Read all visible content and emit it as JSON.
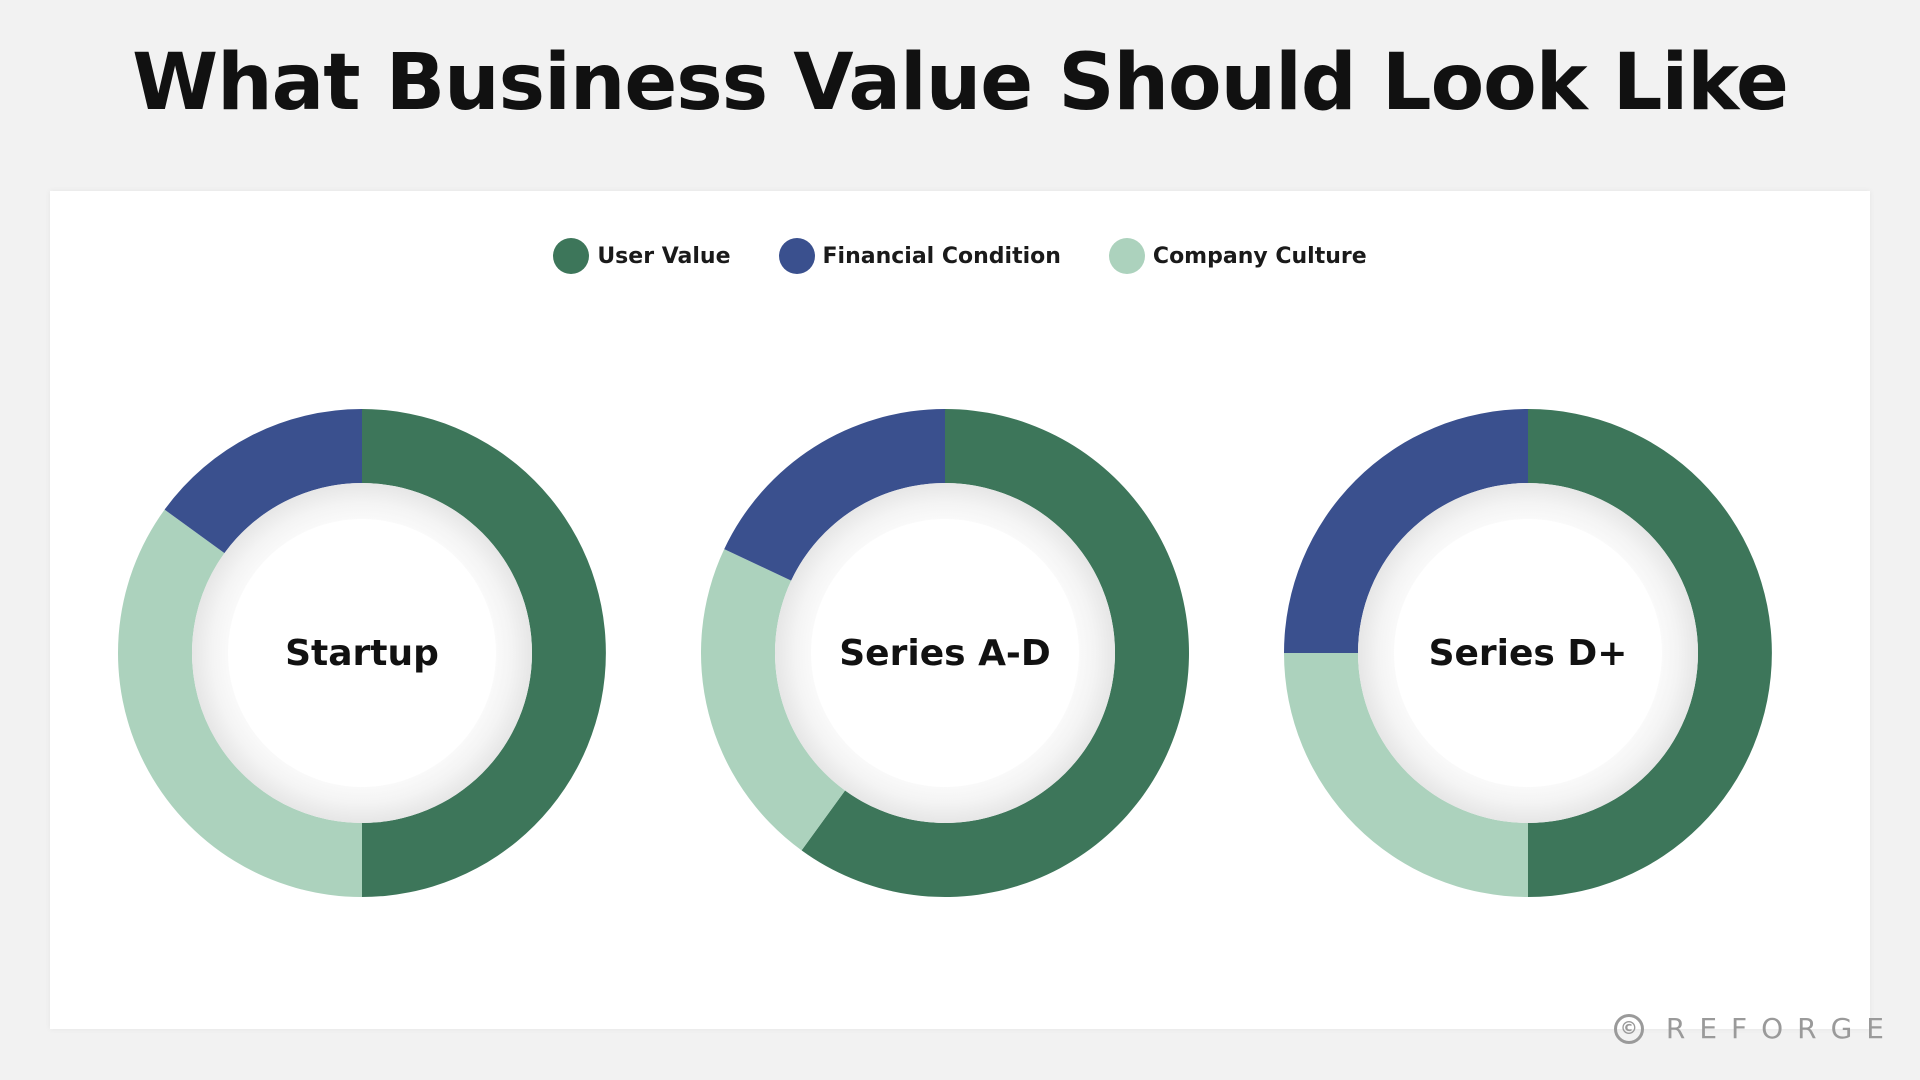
{
  "title": "What Business Value Should Look Like",
  "legend": [
    {
      "label": "User Value",
      "color": "#3d765a"
    },
    {
      "label": "Financial Condition",
      "color": "#3a508e"
    },
    {
      "label": "Company Culture",
      "color": "#acd2bd"
    }
  ],
  "brand": {
    "icon": "copyright-icon",
    "text": "REFORGE"
  },
  "chart_data": [
    {
      "type": "pie",
      "title": "Startup",
      "slices": [
        {
          "label": "User Value",
          "value": 50,
          "color": "#3d765a"
        },
        {
          "label": "Company Culture",
          "value": 35,
          "color": "#acd2bd"
        },
        {
          "label": "Financial Condition",
          "value": 15,
          "color": "#3a508e"
        }
      ]
    },
    {
      "type": "pie",
      "title": "Series A-D",
      "slices": [
        {
          "label": "User Value",
          "value": 60,
          "color": "#3d765a"
        },
        {
          "label": "Company Culture",
          "value": 22,
          "color": "#acd2bd"
        },
        {
          "label": "Financial Condition",
          "value": 18,
          "color": "#3a508e"
        }
      ]
    },
    {
      "type": "pie",
      "title": "Series D+",
      "slices": [
        {
          "label": "User Value",
          "value": 50,
          "color": "#3d765a"
        },
        {
          "label": "Company Culture",
          "value": 25,
          "color": "#acd2bd"
        },
        {
          "label": "Financial Condition",
          "value": 25,
          "color": "#3a508e"
        }
      ]
    }
  ]
}
